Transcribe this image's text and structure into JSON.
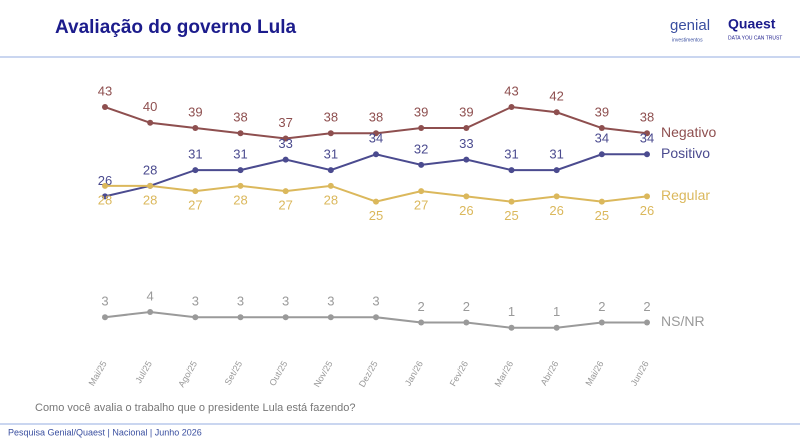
{
  "header": {
    "brand1": "genial",
    "brand1_sub": "investimentos",
    "brand2": "Quaest",
    "brand2_sub": "DATA YOU CAN TRUST"
  },
  "chart_data": {
    "type": "line",
    "title": "Avaliação do governo Lula",
    "categories": [
      "Mai/25",
      "Jul/25",
      "Ago/25",
      "Set/25",
      "Out/25",
      "Nov/25",
      "Dez/25",
      "Jan/26",
      "Fev/26",
      "Mar/26",
      "Abr/26",
      "Mai/26",
      "Jun/26"
    ],
    "series": [
      {
        "name": "Negativo",
        "color": "#8e4f4f",
        "values": [
          43,
          40,
          39,
          38,
          37,
          38,
          38,
          39,
          39,
          43,
          42,
          39,
          38
        ]
      },
      {
        "name": "Positivo",
        "color": "#4b4b8f",
        "values": [
          26,
          28,
          31,
          31,
          33,
          31,
          34,
          32,
          33,
          31,
          31,
          34,
          34
        ]
      },
      {
        "name": "Regular",
        "color": "#dbb85c",
        "values": [
          28,
          28,
          27,
          28,
          27,
          28,
          25,
          27,
          26,
          25,
          26,
          25,
          26
        ]
      },
      {
        "name": "NS/NR",
        "color": "#9a9a9a",
        "values": [
          3,
          4,
          3,
          3,
          3,
          3,
          3,
          2,
          2,
          1,
          1,
          2,
          2
        ]
      }
    ],
    "ylim": [
      0,
      45
    ],
    "question": "Como você avalia o trabalho que o presidente Lula está fazendo?",
    "source": "Pesquisa Genial/Quaest | Nacional | Junho 2026"
  }
}
